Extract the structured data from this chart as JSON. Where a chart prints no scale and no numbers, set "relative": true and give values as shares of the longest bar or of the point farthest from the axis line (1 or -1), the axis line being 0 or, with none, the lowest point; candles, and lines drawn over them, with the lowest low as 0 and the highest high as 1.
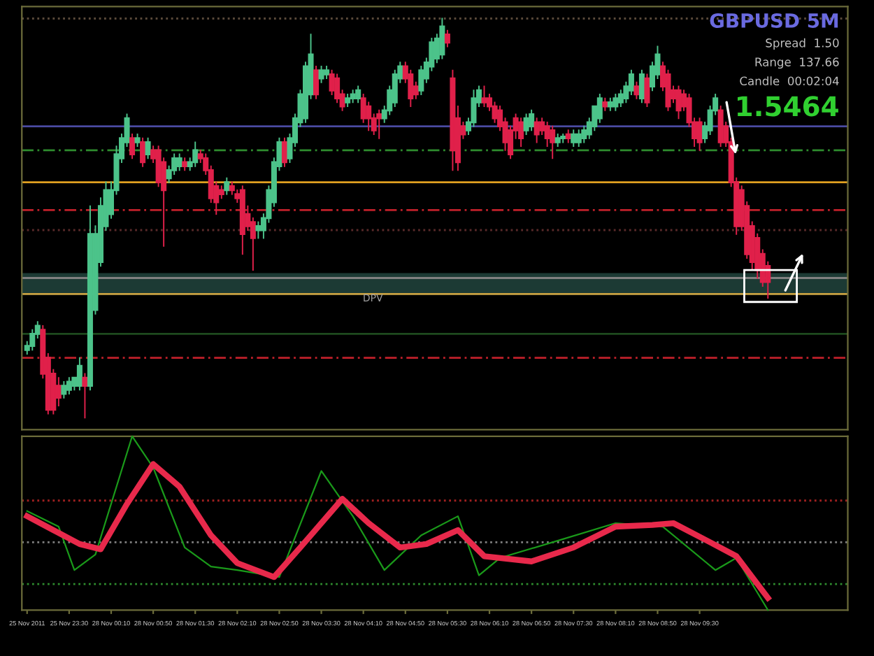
{
  "chart_data": [
    {
      "type": "candlestick",
      "relative": true,
      "tick_labels": false,
      "grid": false,
      "legend": false,
      "categories": [
        null,
        null,
        null,
        null,
        null,
        null,
        null,
        null,
        null,
        null,
        null,
        null,
        null,
        null,
        null,
        null,
        null,
        null,
        null,
        null,
        null,
        null,
        null,
        null,
        null,
        null,
        null,
        null,
        null,
        null,
        null,
        null,
        null,
        null,
        null,
        null,
        null,
        null,
        null,
        null,
        null,
        null,
        null,
        null,
        null,
        null,
        null,
        null,
        null,
        null,
        null,
        null,
        null,
        null,
        null,
        null,
        null,
        null,
        null,
        null,
        null,
        null,
        null,
        null,
        null,
        null,
        null,
        null,
        null,
        null,
        null,
        null,
        null,
        null,
        null,
        null,
        null,
        null,
        null,
        null,
        null,
        null,
        null,
        null,
        null,
        null,
        null,
        null,
        null,
        null,
        null,
        null,
        null,
        null,
        null,
        null,
        null,
        null,
        null,
        null,
        null,
        null,
        null,
        null,
        null,
        null,
        null,
        null,
        null,
        null,
        null,
        null,
        null,
        null,
        null,
        null,
        null,
        null,
        null,
        null,
        null,
        null,
        null,
        null,
        null,
        null,
        null,
        null,
        null,
        null,
        null,
        null,
        null,
        null,
        null,
        null,
        null,
        null,
        null,
        null,
        null,
        null
      ],
      "ohlc": [
        [
          0.17,
          0.19,
          0.16,
          0.18
        ],
        [
          0.18,
          0.22,
          0.17,
          0.21
        ],
        [
          0.21,
          0.24,
          0.2,
          0.23
        ],
        [
          0.22,
          0.23,
          0.1,
          0.11
        ],
        [
          0.15,
          0.16,
          0.01,
          0.02
        ],
        [
          0.11,
          0.12,
          0.01,
          0.02
        ],
        [
          0.08,
          0.1,
          0.03,
          0.05
        ],
        [
          0.06,
          0.09,
          0.05,
          0.08
        ],
        [
          0.07,
          0.1,
          0.06,
          0.09
        ],
        [
          0.08,
          0.1,
          0.07,
          0.1
        ],
        [
          0.08,
          0.15,
          0.07,
          0.13
        ],
        [
          0.1,
          0.11,
          0.0,
          0.08
        ],
        [
          0.08,
          0.53,
          0.07,
          0.46
        ],
        [
          0.27,
          0.48,
          0.26,
          0.46
        ],
        [
          0.39,
          0.55,
          0.38,
          0.53
        ],
        [
          0.48,
          0.59,
          0.47,
          0.57
        ],
        [
          0.51,
          0.59,
          0.5,
          0.57
        ],
        [
          0.57,
          0.68,
          0.56,
          0.66
        ],
        [
          0.65,
          0.71,
          0.64,
          0.7
        ],
        [
          0.69,
          0.76,
          0.68,
          0.75
        ],
        [
          0.7,
          0.71,
          0.65,
          0.66
        ],
        [
          0.69,
          0.71,
          0.68,
          0.7
        ],
        [
          0.69,
          0.7,
          0.63,
          0.64
        ],
        [
          0.66,
          0.7,
          0.65,
          0.69
        ],
        [
          0.67,
          0.68,
          0.64,
          0.65
        ],
        [
          0.67,
          0.68,
          0.58,
          0.59
        ],
        [
          0.64,
          0.65,
          0.43,
          0.57
        ],
        [
          0.6,
          0.63,
          0.59,
          0.62
        ],
        [
          0.62,
          0.66,
          0.61,
          0.65
        ],
        [
          0.63,
          0.66,
          0.62,
          0.65
        ],
        [
          0.64,
          0.65,
          0.62,
          0.63
        ],
        [
          0.63,
          0.65,
          0.62,
          0.64
        ],
        [
          0.64,
          0.69,
          0.63,
          0.67
        ],
        [
          0.66,
          0.67,
          0.64,
          0.65
        ],
        [
          0.65,
          0.66,
          0.61,
          0.62
        ],
        [
          0.62,
          0.63,
          0.54,
          0.55
        ],
        [
          0.58,
          0.59,
          0.51,
          0.54
        ],
        [
          0.57,
          0.58,
          0.55,
          0.56
        ],
        [
          0.57,
          0.6,
          0.56,
          0.59
        ],
        [
          0.58,
          0.59,
          0.56,
          0.57
        ],
        [
          0.56,
          0.57,
          0.54,
          0.55
        ],
        [
          0.57,
          0.58,
          0.41,
          0.46
        ],
        [
          0.51,
          0.53,
          0.47,
          0.48
        ],
        [
          0.49,
          0.5,
          0.37,
          0.45
        ],
        [
          0.47,
          0.49,
          0.45,
          0.48
        ],
        [
          0.47,
          0.51,
          0.45,
          0.5
        ],
        [
          0.5,
          0.58,
          0.49,
          0.57
        ],
        [
          0.54,
          0.65,
          0.53,
          0.64
        ],
        [
          0.63,
          0.7,
          0.62,
          0.69
        ],
        [
          0.69,
          0.7,
          0.63,
          0.64
        ],
        [
          0.65,
          0.71,
          0.64,
          0.7
        ],
        [
          0.69,
          0.76,
          0.68,
          0.75
        ],
        [
          0.74,
          0.82,
          0.73,
          0.81
        ],
        [
          0.75,
          0.89,
          0.74,
          0.88
        ],
        [
          0.81,
          0.96,
          0.8,
          0.91
        ],
        [
          0.87,
          0.88,
          0.8,
          0.81
        ],
        [
          0.85,
          0.88,
          0.84,
          0.87
        ],
        [
          0.86,
          0.88,
          0.85,
          0.87
        ],
        [
          0.86,
          0.87,
          0.81,
          0.82
        ],
        [
          0.85,
          0.86,
          0.79,
          0.8
        ],
        [
          0.81,
          0.82,
          0.77,
          0.78
        ],
        [
          0.79,
          0.81,
          0.78,
          0.8
        ],
        [
          0.8,
          0.82,
          0.79,
          0.81
        ],
        [
          0.8,
          0.83,
          0.79,
          0.82
        ],
        [
          0.8,
          0.81,
          0.74,
          0.75
        ],
        [
          0.78,
          0.79,
          0.72,
          0.75
        ],
        [
          0.75,
          0.76,
          0.71,
          0.72
        ],
        [
          0.76,
          0.77,
          0.7,
          0.75
        ],
        [
          0.75,
          0.78,
          0.74,
          0.77
        ],
        [
          0.77,
          0.83,
          0.76,
          0.82
        ],
        [
          0.79,
          0.87,
          0.78,
          0.86
        ],
        [
          0.85,
          0.89,
          0.84,
          0.88
        ],
        [
          0.88,
          0.89,
          0.84,
          0.85
        ],
        [
          0.86,
          0.87,
          0.78,
          0.8
        ],
        [
          0.83,
          0.84,
          0.8,
          0.81
        ],
        [
          0.82,
          0.88,
          0.81,
          0.87
        ],
        [
          0.85,
          0.9,
          0.84,
          0.89
        ],
        [
          0.88,
          0.95,
          0.87,
          0.94
        ],
        [
          0.9,
          0.96,
          0.89,
          0.95
        ],
        [
          0.91,
          1.0,
          0.9,
          0.98
        ],
        [
          0.96,
          0.97,
          0.93,
          0.94
        ],
        [
          0.85,
          0.87,
          0.62,
          0.67
        ],
        [
          0.75,
          0.78,
          0.62,
          0.64
        ],
        [
          0.73,
          0.74,
          0.7,
          0.71
        ],
        [
          0.72,
          0.75,
          0.71,
          0.74
        ],
        [
          0.74,
          0.82,
          0.73,
          0.8
        ],
        [
          0.79,
          0.83,
          0.78,
          0.82
        ],
        [
          0.8,
          0.83,
          0.78,
          0.79
        ],
        [
          0.8,
          0.81,
          0.77,
          0.78
        ],
        [
          0.78,
          0.79,
          0.74,
          0.75
        ],
        [
          0.77,
          0.78,
          0.72,
          0.73
        ],
        [
          0.74,
          0.75,
          0.67,
          0.69
        ],
        [
          0.72,
          0.73,
          0.65,
          0.66
        ],
        [
          0.75,
          0.76,
          0.7,
          0.72
        ],
        [
          0.74,
          0.75,
          0.68,
          0.7
        ],
        [
          0.72,
          0.76,
          0.71,
          0.75
        ],
        [
          0.73,
          0.77,
          0.72,
          0.76
        ],
        [
          0.74,
          0.75,
          0.69,
          0.71
        ],
        [
          0.74,
          0.75,
          0.71,
          0.72
        ],
        [
          0.73,
          0.74,
          0.68,
          0.7
        ],
        [
          0.72,
          0.73,
          0.65,
          0.69
        ],
        [
          0.69,
          0.71,
          0.68,
          0.7
        ],
        [
          0.7,
          0.71,
          0.69,
          0.7
        ],
        [
          0.71,
          0.72,
          0.69,
          0.7
        ],
        [
          0.69,
          0.72,
          0.68,
          0.71
        ],
        [
          0.69,
          0.72,
          0.68,
          0.71
        ],
        [
          0.7,
          0.73,
          0.69,
          0.72
        ],
        [
          0.71,
          0.75,
          0.7,
          0.74
        ],
        [
          0.73,
          0.78,
          0.72,
          0.78
        ],
        [
          0.75,
          0.81,
          0.74,
          0.8
        ],
        [
          0.79,
          0.8,
          0.77,
          0.78
        ],
        [
          0.78,
          0.8,
          0.77,
          0.79
        ],
        [
          0.78,
          0.81,
          0.77,
          0.8
        ],
        [
          0.79,
          0.82,
          0.78,
          0.81
        ],
        [
          0.8,
          0.84,
          0.79,
          0.83
        ],
        [
          0.82,
          0.87,
          0.81,
          0.86
        ],
        [
          0.83,
          0.84,
          0.8,
          0.81
        ],
        [
          0.8,
          0.87,
          0.79,
          0.86
        ],
        [
          0.85,
          0.86,
          0.78,
          0.79
        ],
        [
          0.83,
          0.89,
          0.82,
          0.88
        ],
        [
          0.86,
          0.93,
          0.85,
          0.91
        ],
        [
          0.88,
          0.89,
          0.82,
          0.83
        ],
        [
          0.86,
          0.87,
          0.77,
          0.78
        ],
        [
          0.82,
          0.83,
          0.79,
          0.8
        ],
        [
          0.82,
          0.83,
          0.75,
          0.77
        ],
        [
          0.81,
          0.82,
          0.77,
          0.78
        ],
        [
          0.8,
          0.81,
          0.73,
          0.74
        ],
        [
          0.74,
          0.75,
          0.68,
          0.7
        ],
        [
          0.74,
          0.75,
          0.67,
          0.69
        ],
        [
          0.7,
          0.74,
          0.69,
          0.73
        ],
        [
          0.72,
          0.78,
          0.71,
          0.77
        ],
        [
          0.77,
          0.81,
          0.76,
          0.8
        ],
        [
          0.77,
          0.78,
          0.68,
          0.69
        ],
        [
          0.73,
          0.74,
          0.68,
          0.69
        ],
        [
          0.69,
          0.7,
          0.58,
          0.59
        ],
        [
          0.59,
          0.6,
          0.46,
          0.48
        ],
        [
          0.57,
          0.58,
          0.47,
          0.48
        ],
        [
          0.53,
          0.54,
          0.4,
          0.41
        ],
        [
          0.48,
          0.49,
          0.37,
          0.39
        ],
        [
          0.45,
          0.46,
          0.35,
          0.37
        ],
        [
          0.41,
          0.42,
          0.33,
          0.34
        ],
        [
          0.38,
          0.39,
          0.3,
          0.34
        ]
      ],
      "ref_lines": [
        {
          "axis": "y",
          "value": 1.0,
          "color": "#5a4a3a",
          "line_style": "dotted"
        },
        {
          "axis": "y",
          "value": 0.73,
          "color": "#4a4aa0",
          "line_style": "solid"
        },
        {
          "axis": "y",
          "value": 0.67,
          "color": "#2e8b2e",
          "line_style": "dashed"
        },
        {
          "axis": "y",
          "value": 0.59,
          "color": "#e0a020",
          "line_style": "solid"
        },
        {
          "axis": "y",
          "value": 0.52,
          "color": "#c0202a",
          "line_style": "dashed"
        },
        {
          "axis": "y",
          "value": 0.47,
          "color": "#5a2a2a",
          "line_style": "dotted"
        },
        {
          "axis": "y",
          "value": 0.35,
          "color": "#808080",
          "line_style": "solid"
        },
        {
          "axis": "y",
          "value": 0.31,
          "color": "#c8a040",
          "line_style": "solid",
          "label": "DPV"
        },
        {
          "axis": "y",
          "value": 0.21,
          "color": "#1e4a1e",
          "line_style": "solid"
        },
        {
          "axis": "y",
          "value": 0.15,
          "color": "#c0202a",
          "line_style": "dashed"
        }
      ],
      "bands": [
        {
          "axis": "y",
          "from": 0.31,
          "to": 0.36,
          "color": "#1c3a34"
        }
      ],
      "annotations": [
        "GBPUSD 5M",
        "Spread  1.50",
        "Range  137.66",
        "Candle  00:02:04",
        "1.5464"
      ]
    },
    {
      "type": "line",
      "relative": true,
      "tick_labels": "x",
      "grid": false,
      "legend": false,
      "line_style": "solid",
      "marker": "none",
      "categories": [
        "25 Nov 2011",
        null,
        null,
        null,
        null,
        null,
        null,
        null,
        "25 Nov 23:30",
        null,
        null,
        null,
        null,
        null,
        null,
        null,
        "28 Nov 00:10",
        null,
        null,
        null,
        null,
        null,
        null,
        null,
        "28 Nov 00:50",
        null,
        null,
        null,
        null,
        null,
        null,
        null,
        "28 Nov 01:30",
        null,
        null,
        null,
        null,
        null,
        null,
        null,
        "28 Nov 02:10",
        null,
        null,
        null,
        null,
        null,
        null,
        null,
        "28 Nov 02:50",
        null,
        null,
        null,
        null,
        null,
        null,
        null,
        "28 Nov 03:30",
        null,
        null,
        null,
        null,
        null,
        null,
        null,
        "28 Nov 04:10",
        null,
        null,
        null,
        null,
        null,
        null,
        null,
        "28 Nov 04:50",
        null,
        null,
        null,
        null,
        null,
        null,
        null,
        "28 Nov 05:30",
        null,
        null,
        null,
        null,
        null,
        null,
        null,
        "28 Nov 06:10",
        null,
        null,
        null,
        null,
        null,
        null,
        null,
        "28 Nov 06:50",
        null,
        null,
        null,
        null,
        null,
        null,
        null,
        "28 Nov 07:30",
        null,
        null,
        null,
        null,
        null,
        null,
        null,
        "28 Nov 08:10",
        null,
        null,
        null,
        null,
        null,
        null,
        null,
        "28 Nov 08:50",
        null,
        null,
        null,
        null,
        null,
        null,
        null,
        "28 Nov 09:30",
        null,
        null,
        null,
        null,
        null,
        null,
        null,
        null,
        null,
        null,
        null,
        null,
        null
      ],
      "series": [
        {
          "color": "#1a9a1a",
          "values": [
            0.57,
            null,
            null,
            null,
            null,
            null,
            0.48,
            null,
            null,
            0.23,
            null,
            null,
            null,
            0.32,
            null,
            null,
            null,
            null,
            null,
            null,
            1.0,
            null,
            null,
            null,
            0.82,
            null,
            null,
            null,
            null,
            null,
            0.36,
            null,
            null,
            null,
            null,
            0.25,
            null,
            null,
            null,
            null,
            0.23,
            null,
            null,
            null,
            null,
            null,
            null,
            null,
            0.19,
            null,
            null,
            null,
            null,
            null,
            null,
            null,
            0.8,
            null,
            null,
            null,
            null,
            null,
            0.54,
            null,
            null,
            null,
            null,
            null,
            0.23,
            null,
            null,
            null,
            null,
            null,
            null,
            0.43,
            null,
            null,
            null,
            null,
            null,
            null,
            0.54,
            null,
            null,
            null,
            0.2,
            null,
            null,
            null,
            0.3,
            null,
            null,
            null,
            null,
            null,
            null,
            null,
            null,
            null,
            0.39,
            null,
            null,
            null,
            null,
            null,
            null,
            null,
            null,
            null,
            null,
            null,
            0.5,
            null,
            null,
            null,
            null,
            null,
            null,
            null,
            null,
            0.48,
            null,
            null,
            null,
            null,
            null,
            null,
            null,
            null,
            null,
            0.23,
            null,
            null,
            null,
            0.3,
            null,
            null,
            null,
            null,
            null,
            0.0
          ]
        },
        {
          "color": "#e8294b",
          "values": [
            0.54,
            null,
            null,
            null,
            null,
            0.46,
            null,
            null,
            null,
            null,
            0.38,
            null,
            null,
            null,
            0.35,
            null,
            null,
            null,
            null,
            0.61,
            null,
            null,
            null,
            null,
            0.84,
            null,
            null,
            null,
            null,
            0.71,
            null,
            null,
            null,
            null,
            null,
            0.43,
            null,
            null,
            null,
            null,
            0.27,
            null,
            null,
            null,
            null,
            null,
            null,
            0.19,
            null,
            null,
            null,
            null,
            0.36,
            null,
            null,
            null,
            null,
            null,
            null,
            null,
            0.64,
            null,
            null,
            null,
            null,
            0.5,
            null,
            null,
            null,
            null,
            null,
            0.36,
            null,
            null,
            null,
            null,
            0.38,
            null,
            null,
            null,
            null,
            null,
            0.46,
            null,
            null,
            null,
            null,
            0.31,
            null,
            null,
            null,
            null,
            null,
            null,
            null,
            null,
            0.28,
            null,
            null,
            null,
            null,
            null,
            null,
            null,
            0.36,
            null,
            null,
            null,
            null,
            null,
            null,
            null,
            0.48,
            null,
            null,
            null,
            null,
            null,
            null,
            0.49,
            null,
            null,
            null,
            0.5,
            null,
            null,
            null,
            null,
            null,
            null,
            0.39,
            null,
            null,
            null,
            null,
            0.31,
            null,
            null,
            null,
            null,
            null,
            0.07
          ]
        }
      ],
      "ref_lines": [
        {
          "axis": "y",
          "value": 0.63,
          "color": "#a02020",
          "line_style": "dotted"
        },
        {
          "axis": "y",
          "value": 0.39,
          "color": "#808080",
          "line_style": "dotted"
        },
        {
          "axis": "y",
          "value": 0.15,
          "color": "#2e8b2e",
          "line_style": "dotted"
        }
      ]
    }
  ]
}
